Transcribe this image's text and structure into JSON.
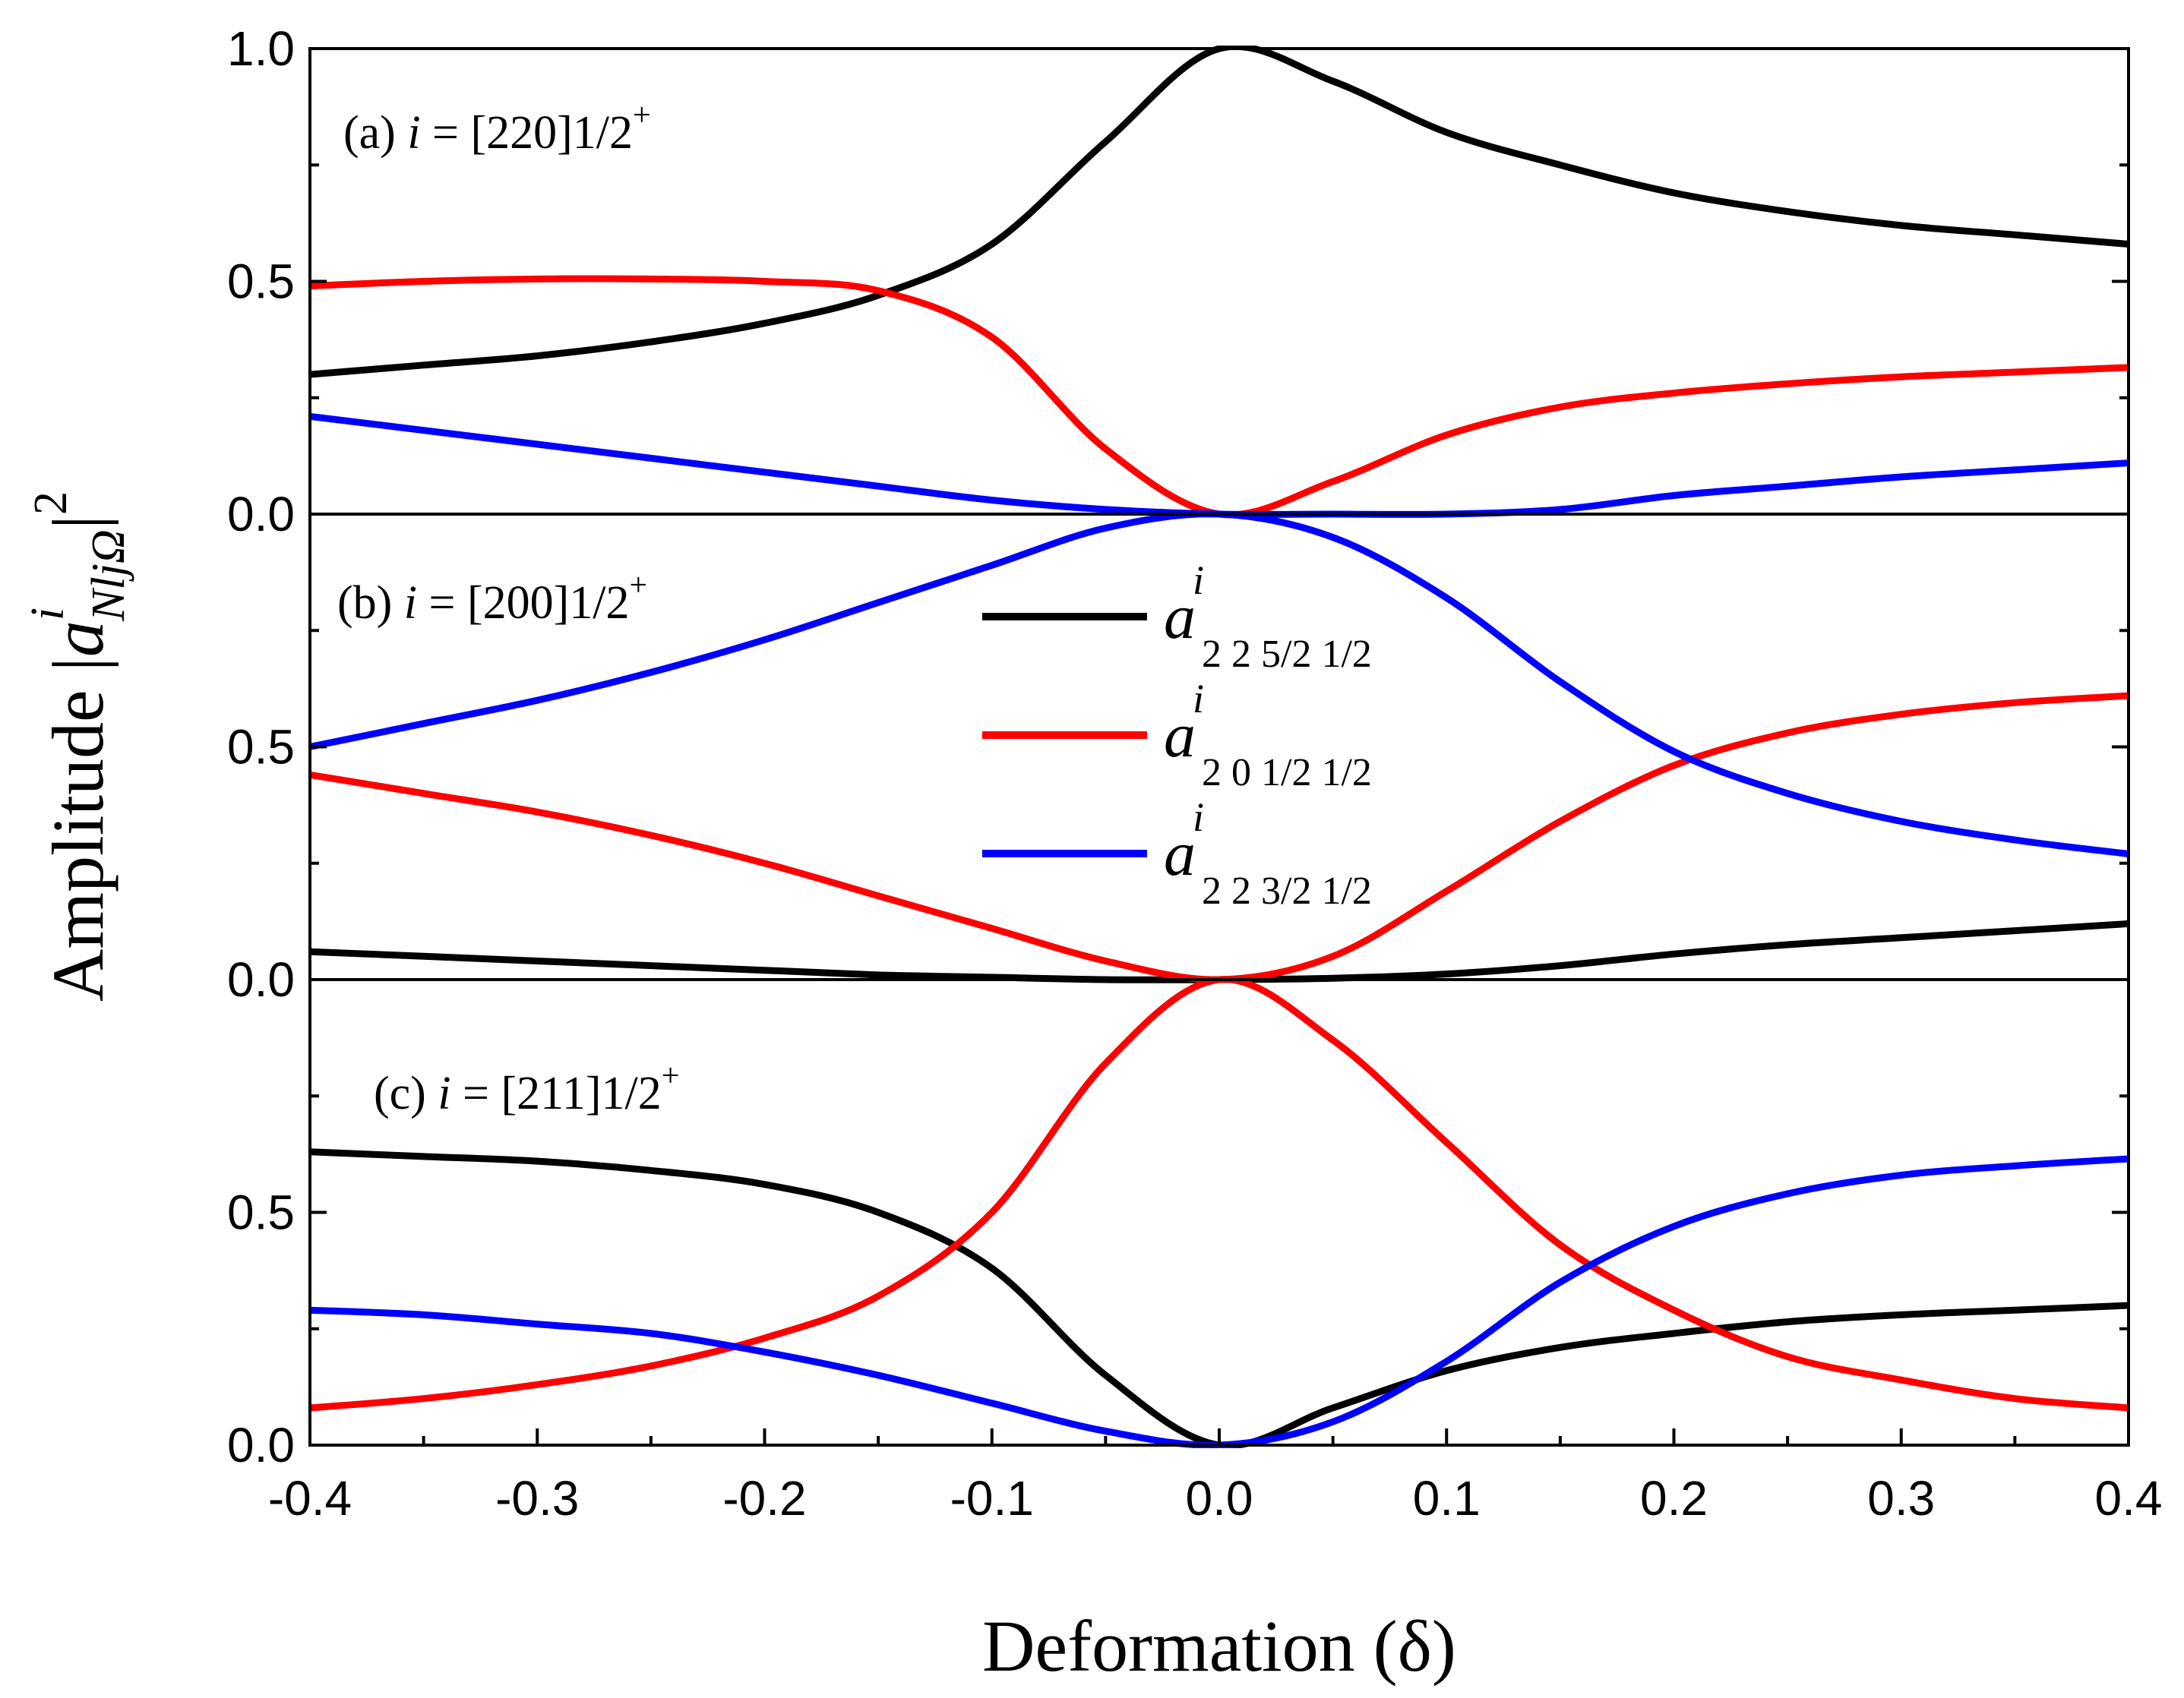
{
  "chart_data": {
    "type": "line",
    "xlabel": "Deformation (δ)",
    "ylabel": {
      "prefix": "Amplitude |",
      "symbol": "a",
      "superscript": "i",
      "subscript": "NljΩ",
      "suffix": "|",
      "power": "2"
    },
    "xlim": [
      -0.4,
      0.4
    ],
    "x_ticks": [
      "-0.4",
      "-0.3",
      "-0.2",
      "-0.1",
      "0.0",
      "0.1",
      "0.2",
      "0.3",
      "0.4"
    ],
    "y_ticks": {
      "panel_a": [
        "0.0",
        "0.5",
        "1.0"
      ],
      "panel_b": [
        "0.0",
        "0.5"
      ],
      "panel_c": [
        "0.0",
        "0.5"
      ]
    },
    "colors": {
      "s1": "#000000",
      "s2": "#ff0000",
      "s3": "#0000ff"
    },
    "legend": {
      "placement": "inside panel (b), center",
      "entries": [
        {
          "series": "s1",
          "symbol": "a",
          "sup": "i",
          "sub": "2 2 5/2 1/2"
        },
        {
          "series": "s2",
          "symbol": "a",
          "sup": "i",
          "sub": "2 0 1/2 1/2"
        },
        {
          "series": "s3",
          "symbol": "a",
          "sup": "i",
          "sub": "2 2 3/2 1/2"
        }
      ]
    },
    "x": [
      -0.4,
      -0.35,
      -0.3,
      -0.25,
      -0.2,
      -0.15,
      -0.1,
      -0.05,
      0.0,
      0.05,
      0.1,
      0.15,
      0.2,
      0.25,
      0.3,
      0.35,
      0.4
    ],
    "panels": [
      {
        "id": "a",
        "label": {
          "prefix": "(a) ",
          "var": "i",
          "rest": " = [220]1/2",
          "sup": "+"
        },
        "ylim": [
          0,
          1.0
        ],
        "series": [
          {
            "key": "s1",
            "values": [
              0.3,
              0.32,
              0.34,
              0.37,
              0.41,
              0.47,
              0.58,
              0.8,
              1.0,
              0.93,
              0.82,
              0.75,
              0.69,
              0.65,
              0.62,
              0.6,
              0.58
            ]
          },
          {
            "key": "s2",
            "values": [
              0.49,
              0.5,
              0.505,
              0.505,
              0.5,
              0.48,
              0.38,
              0.14,
              0.0,
              0.07,
              0.17,
              0.23,
              0.26,
              0.28,
              0.295,
              0.305,
              0.315
            ]
          },
          {
            "key": "s3",
            "values": [
              0.21,
              0.18,
              0.15,
              0.12,
              0.09,
              0.06,
              0.03,
              0.01,
              0.0,
              0.0,
              0.0,
              0.01,
              0.04,
              0.06,
              0.08,
              0.095,
              0.11
            ]
          }
        ]
      },
      {
        "id": "b",
        "label": {
          "prefix": "(b) ",
          "var": "i",
          "rest": " = [200]1/2",
          "sup": "+"
        },
        "ylim": [
          0,
          1.0
        ],
        "series": [
          {
            "key": "s1",
            "values": [
              0.06,
              0.05,
              0.04,
              0.03,
              0.02,
              0.01,
              0.005,
              0.0,
              0.0,
              0.003,
              0.012,
              0.03,
              0.055,
              0.075,
              0.09,
              0.105,
              0.12
            ]
          },
          {
            "key": "s2",
            "values": [
              0.44,
              0.4,
              0.36,
              0.31,
              0.25,
              0.18,
              0.11,
              0.04,
              0.0,
              0.05,
              0.19,
              0.34,
              0.46,
              0.53,
              0.57,
              0.595,
              0.61
            ]
          },
          {
            "key": "s3",
            "values": [
              0.5,
              0.55,
              0.6,
              0.66,
              0.73,
              0.81,
              0.89,
              0.97,
              1.0,
              0.95,
              0.82,
              0.64,
              0.49,
              0.4,
              0.34,
              0.3,
              0.27
            ]
          }
        ]
      },
      {
        "id": "c",
        "label": {
          "prefix": "(c) ",
          "var": "i",
          "rest": " = [211]1/2",
          "sup": "+"
        },
        "ylim": [
          0,
          1.0
        ],
        "series": [
          {
            "key": "s1",
            "values": [
              0.63,
              0.62,
              0.61,
              0.59,
              0.56,
              0.5,
              0.38,
              0.15,
              0.0,
              0.08,
              0.16,
              0.21,
              0.24,
              0.265,
              0.28,
              0.29,
              0.3
            ]
          },
          {
            "key": "s2",
            "values": [
              0.08,
              0.1,
              0.13,
              0.17,
              0.23,
              0.32,
              0.5,
              0.82,
              1.0,
              0.87,
              0.65,
              0.43,
              0.29,
              0.19,
              0.14,
              0.1,
              0.08
            ]
          },
          {
            "key": "s3",
            "values": [
              0.29,
              0.28,
              0.26,
              0.24,
              0.2,
              0.15,
              0.09,
              0.03,
              0.0,
              0.05,
              0.18,
              0.35,
              0.47,
              0.54,
              0.58,
              0.6,
              0.615
            ]
          }
        ]
      }
    ]
  }
}
